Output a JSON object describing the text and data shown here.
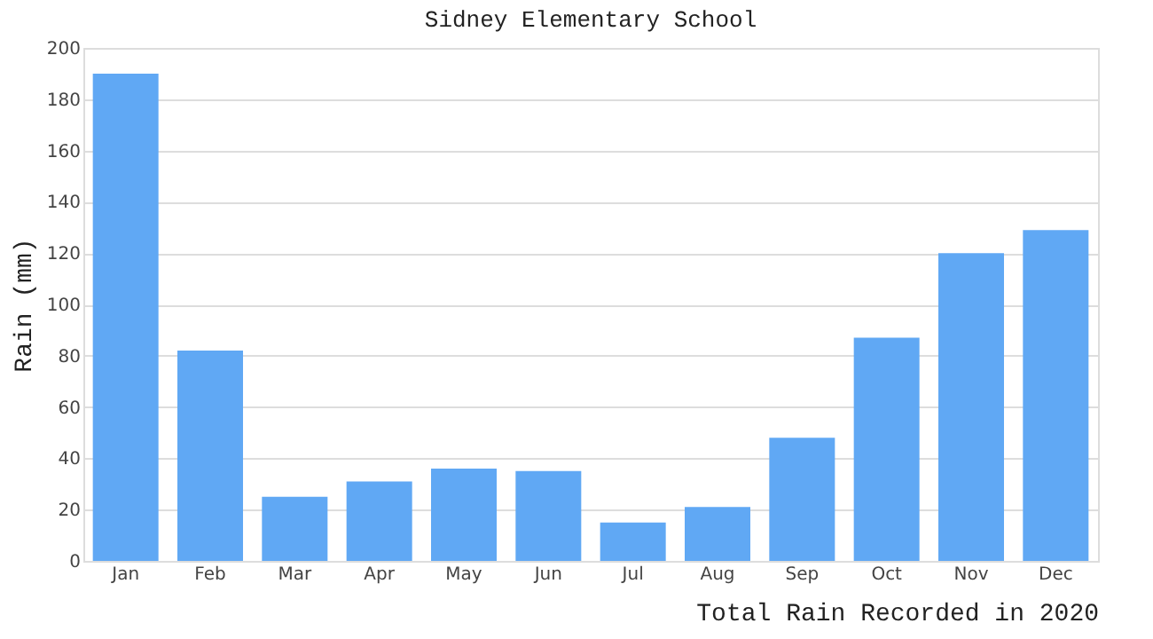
{
  "chart_data": {
    "type": "bar",
    "title": "Sidney Elementary School",
    "xlabel": "Total Rain Recorded in 2020",
    "ylabel": "Rain (mm)",
    "categories": [
      "Jan",
      "Feb",
      "Mar",
      "Apr",
      "May",
      "Jun",
      "Jul",
      "Aug",
      "Sep",
      "Oct",
      "Nov",
      "Dec"
    ],
    "values": [
      190,
      82,
      25,
      31,
      36,
      35,
      15,
      21,
      48,
      87,
      120,
      129
    ],
    "color": "#60a8f4",
    "ylim": [
      0,
      200
    ],
    "yticks": [
      0,
      20,
      40,
      60,
      80,
      100,
      120,
      140,
      160,
      180,
      200
    ],
    "grid": "y"
  }
}
